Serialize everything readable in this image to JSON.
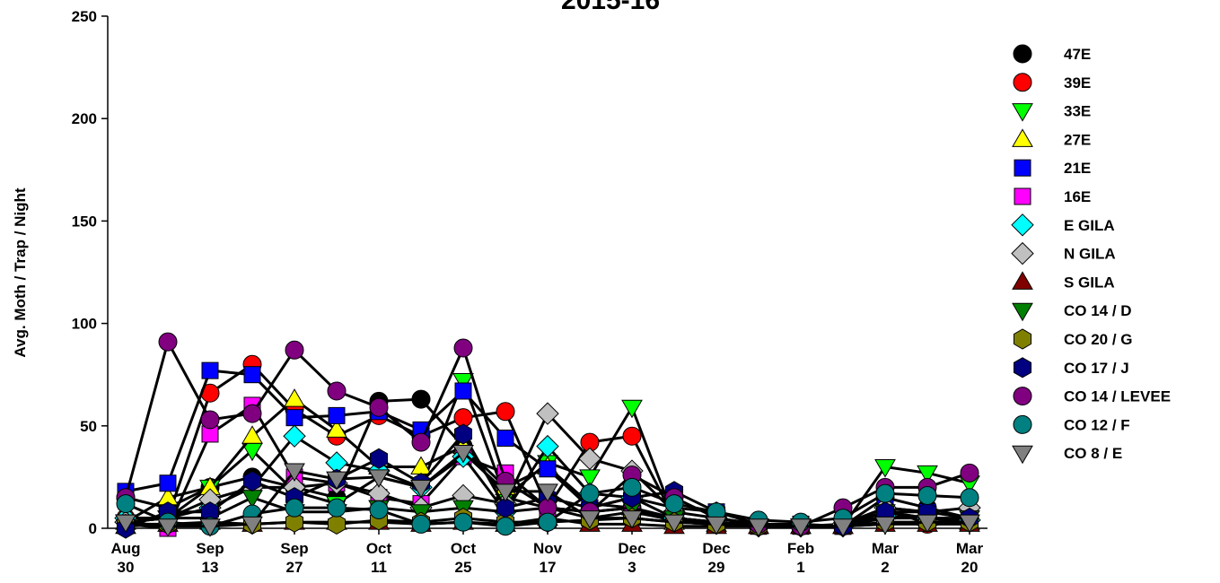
{
  "chart_data": {
    "type": "line",
    "title": "2015-16",
    "y_label": "Avg. Moth / Trap / Night",
    "categories": [
      "Aug 30",
      null,
      "Sep 13",
      null,
      "Sep 27",
      null,
      "Oct 11",
      null,
      "Oct 25",
      null,
      "Nov 17",
      null,
      "Dec 3",
      null,
      "Dec 29",
      null,
      "Feb 1",
      null,
      "Mar 2",
      null,
      "Mar 20"
    ],
    "ylim": [
      0,
      250
    ],
    "yticks": [
      0,
      50,
      100,
      150,
      200,
      250
    ],
    "line_color": "#000000",
    "series": [
      {
        "name": "47E",
        "color": "#000000",
        "marker": "circle",
        "values": [
          15,
          10,
          20,
          25,
          20,
          15,
          62,
          63,
          40,
          15,
          10,
          8,
          10,
          5,
          3,
          2,
          1,
          1,
          15,
          10,
          5
        ]
      },
      {
        "name": "39E",
        "color": "#ff0000",
        "marker": "circle",
        "values": [
          5,
          5,
          66,
          80,
          58,
          45,
          55,
          45,
          54,
          57,
          10,
          42,
          45,
          5,
          3,
          1,
          1,
          1,
          10,
          2,
          5
        ]
      },
      {
        "name": "33E",
        "color": "#00ff00",
        "marker": "triangle-down",
        "values": [
          3,
          5,
          20,
          38,
          18,
          12,
          25,
          20,
          72,
          15,
          32,
          25,
          59,
          5,
          2,
          1,
          1,
          1,
          30,
          27,
          22
        ]
      },
      {
        "name": "27E",
        "color": "#ffff00",
        "marker": "triangle-up",
        "values": [
          3,
          15,
          20,
          45,
          63,
          48,
          30,
          30,
          40,
          20,
          30,
          12,
          10,
          3,
          2,
          1,
          1,
          1,
          8,
          5,
          3
        ]
      },
      {
        "name": "21E",
        "color": "#0000ff",
        "marker": "square",
        "values": [
          18,
          22,
          77,
          75,
          54,
          55,
          57,
          48,
          67,
          44,
          29,
          10,
          15,
          10,
          8,
          2,
          2,
          1,
          10,
          8,
          5
        ]
      },
      {
        "name": "16E",
        "color": "#ff00ff",
        "marker": "square",
        "values": [
          2,
          0,
          46,
          60,
          25,
          22,
          15,
          12,
          35,
          27,
          10,
          5,
          8,
          4,
          3,
          1,
          1,
          1,
          5,
          5,
          3
        ]
      },
      {
        "name": "E GILA",
        "color": "#00ffff",
        "marker": "diamond",
        "values": [
          5,
          5,
          10,
          20,
          45,
          32,
          28,
          20,
          35,
          8,
          40,
          17,
          15,
          5,
          3,
          1,
          1,
          1,
          6,
          5,
          4
        ]
      },
      {
        "name": "N GILA",
        "color": "#c0c0c0",
        "marker": "diamond",
        "values": [
          3,
          5,
          14,
          20,
          20,
          22,
          17,
          10,
          16,
          12,
          56,
          34,
          28,
          8,
          5,
          2,
          1,
          2,
          10,
          8,
          10
        ]
      },
      {
        "name": "S GILA",
        "color": "#800000",
        "marker": "triangle-up",
        "values": [
          1,
          2,
          3,
          2,
          3,
          3,
          3,
          2,
          3,
          2,
          5,
          2,
          2,
          1,
          1,
          1,
          1,
          1,
          2,
          2,
          2
        ]
      },
      {
        "name": "CO 14 / D",
        "color": "#008000",
        "marker": "triangle-down",
        "values": [
          3,
          5,
          5,
          15,
          8,
          8,
          10,
          8,
          10,
          8,
          10,
          8,
          10,
          5,
          3,
          1,
          1,
          1,
          8,
          5,
          5
        ]
      },
      {
        "name": "CO 20 / G",
        "color": "#808000",
        "marker": "hexagon",
        "values": [
          2,
          2,
          2,
          2,
          3,
          2,
          4,
          3,
          5,
          3,
          3,
          4,
          5,
          3,
          2,
          1,
          1,
          1,
          3,
          3,
          3
        ]
      },
      {
        "name": "CO 17 / J",
        "color": "#000080",
        "marker": "hexagon",
        "values": [
          0,
          8,
          8,
          23,
          15,
          24,
          34,
          22,
          46,
          10,
          15,
          10,
          15,
          18,
          8,
          2,
          1,
          1,
          8,
          8,
          5
        ]
      },
      {
        "name": "CO 14 / LEVEE",
        "color": "#800080",
        "marker": "circle",
        "values": [
          15,
          91,
          53,
          56,
          87,
          67,
          59,
          42,
          88,
          23,
          10,
          8,
          26,
          15,
          5,
          2,
          1,
          10,
          20,
          20,
          27
        ]
      },
      {
        "name": "CO 12 / F",
        "color": "#008080",
        "marker": "circle",
        "values": [
          12,
          3,
          1,
          7,
          10,
          10,
          9,
          2,
          3,
          1,
          3,
          17,
          20,
          12,
          8,
          4,
          3,
          5,
          17,
          16,
          15
        ]
      },
      {
        "name": "CO 8 / E",
        "color": "#808080",
        "marker": "triangle-down",
        "values": [
          3,
          1,
          1,
          2,
          28,
          24,
          25,
          20,
          37,
          18,
          18,
          5,
          5,
          3,
          2,
          1,
          1,
          1,
          2,
          3,
          3
        ]
      }
    ]
  }
}
